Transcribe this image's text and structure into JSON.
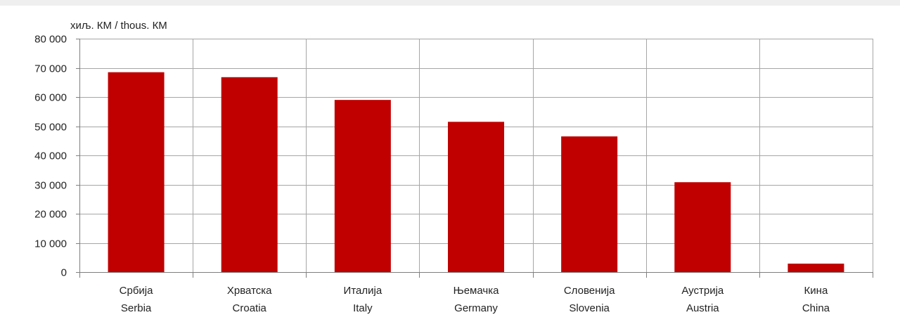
{
  "chart_data": {
    "type": "bar",
    "unit_label": "хиљ. КМ / thous. КМ",
    "categories": [
      {
        "local": "Србија",
        "en": "Serbia"
      },
      {
        "local": "Хрватска",
        "en": "Croatia"
      },
      {
        "local": "Италија",
        "en": "Italy"
      },
      {
        "local": "Њемачка",
        "en": "Germany"
      },
      {
        "local": "Словенија",
        "en": "Slovenia"
      },
      {
        "local": "Аустрија",
        "en": "Austria"
      },
      {
        "local": "Кина",
        "en": "China"
      }
    ],
    "values": [
      68500,
      66800,
      59000,
      51500,
      46500,
      30800,
      2900
    ],
    "ylim": [
      0,
      80000
    ],
    "yticks": [
      0,
      10000,
      20000,
      30000,
      40000,
      50000,
      60000,
      70000,
      80000
    ],
    "ytick_labels": [
      "0",
      "10 000",
      "20 000",
      "30 000",
      "40 000",
      "50 000",
      "60 000",
      "70 000",
      "80 000"
    ],
    "grid": true,
    "bar_color": "#c00000",
    "grid_color": "#a6a6a6"
  }
}
